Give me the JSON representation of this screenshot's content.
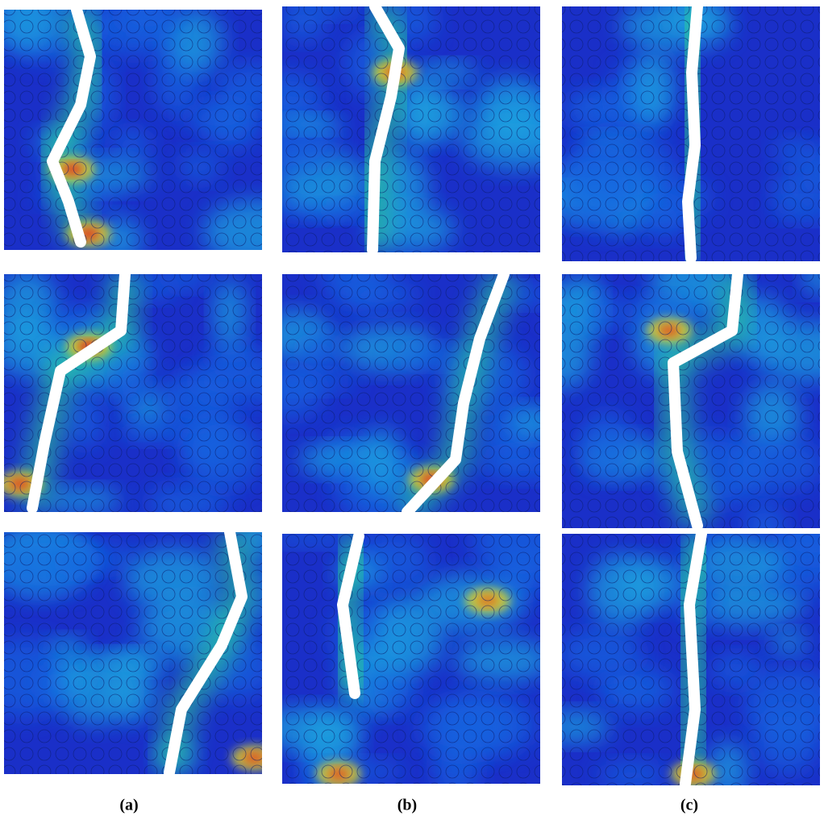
{
  "columns": [
    {
      "label": "(a)"
    },
    {
      "label": "(b)"
    },
    {
      "label": "(c)"
    }
  ]
}
